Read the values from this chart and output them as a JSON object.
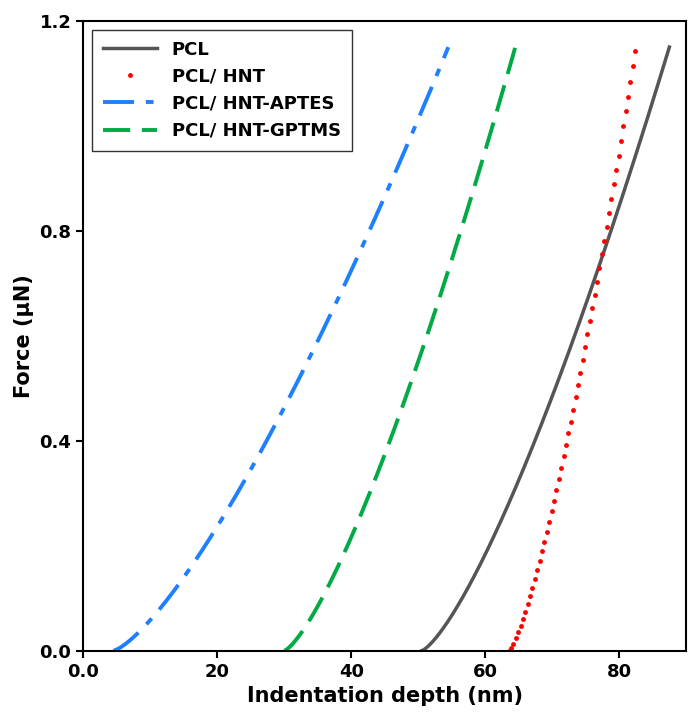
{
  "title": "",
  "xlabel": "Indentation depth (nm)",
  "ylabel": "Force (μN)",
  "xlim": [
    0.0,
    90.0
  ],
  "ylim": [
    0.0,
    1.2
  ],
  "xticks": [
    0,
    20,
    40,
    60,
    80
  ],
  "yticks": [
    0.0,
    0.4,
    0.8,
    1.2
  ],
  "xtick_labels": [
    "0.0",
    "20",
    "40",
    "60",
    "80"
  ],
  "ytick_labels": [
    "0.0",
    "0.4",
    "0.8",
    "1.2"
  ],
  "curves": [
    {
      "label": "PCL",
      "color": "#555555",
      "linestyle": "solid",
      "linewidth": 2.5,
      "x0": 50.5,
      "x1": 87.5,
      "exponent": 1.35,
      "fmax": 1.15
    },
    {
      "label": "PCL/ HNT",
      "color": "#ff0000",
      "linestyle": "dotted",
      "linewidth": 3.0,
      "dot_size": 6,
      "x0": 63.5,
      "x1": 82.5,
      "exponent": 1.35,
      "fmax": 1.15
    },
    {
      "label": "PCL/ HNT-APTES",
      "color": "#1e7fff",
      "linestyle": "dashdot",
      "linewidth": 2.8,
      "x0": 4.5,
      "x1": 54.5,
      "exponent": 1.35,
      "fmax": 1.15
    },
    {
      "label": "PCL/ HNT-GPTMS",
      "color": "#00aa44",
      "linestyle": "dashed",
      "linewidth": 2.8,
      "x0": 30.0,
      "x1": 64.5,
      "exponent": 1.35,
      "fmax": 1.15
    }
  ],
  "legend_fontsize": 13,
  "axis_label_fontsize": 15,
  "tick_fontsize": 13,
  "figure_width": 7.0,
  "figure_height": 7.2,
  "dpi": 100
}
